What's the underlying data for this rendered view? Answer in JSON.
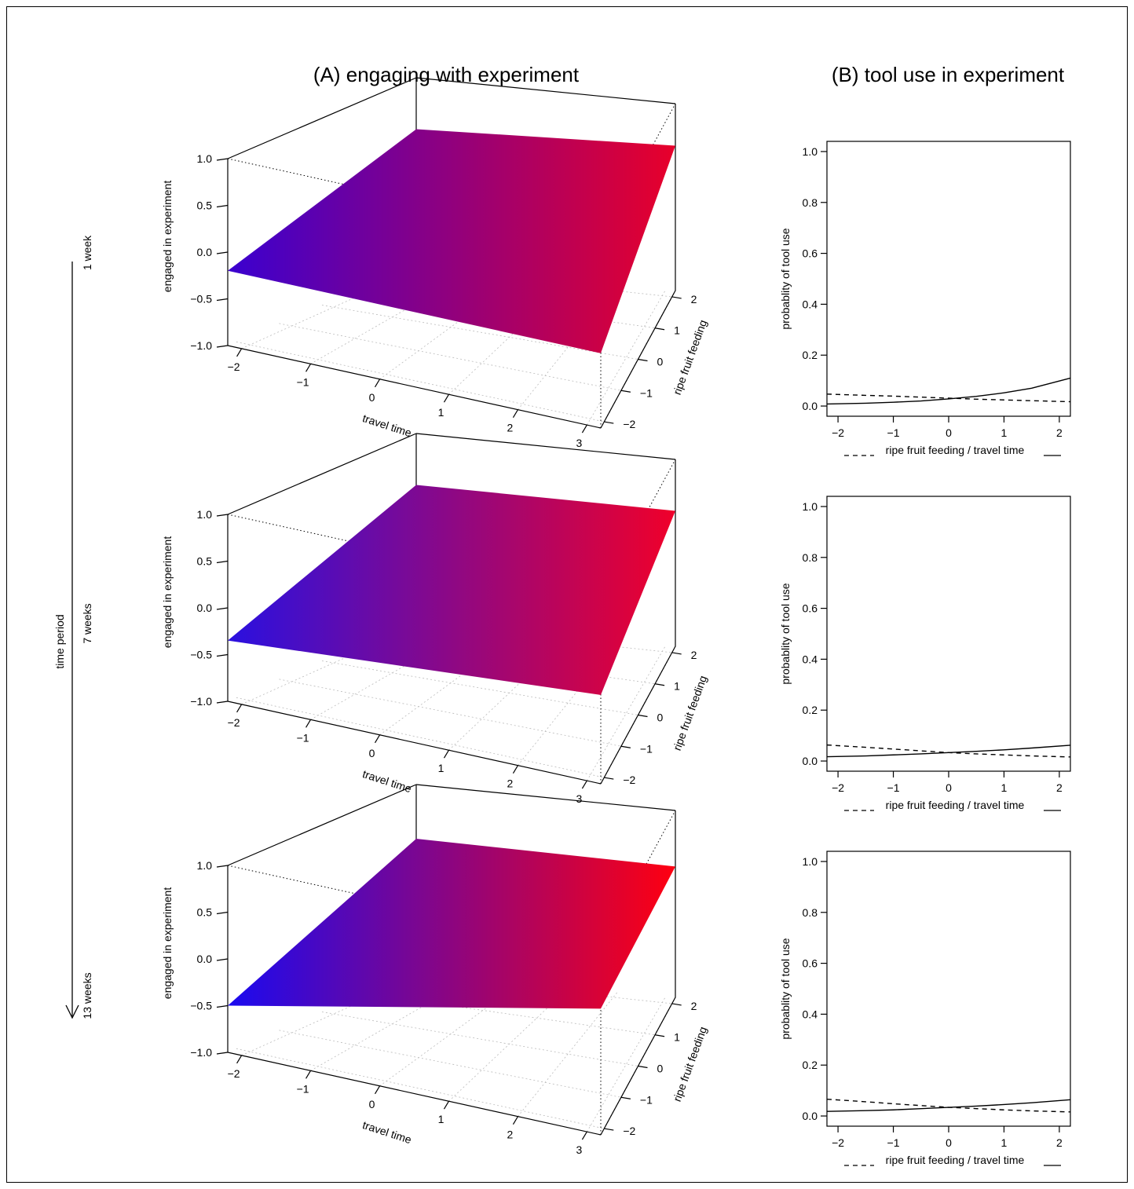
{
  "figure": {
    "left_title": "(A) engaging with experiment",
    "right_title": "(B) tool use in experiment",
    "time_axis_label": "time period",
    "periods": [
      "1 week",
      "7 weeks",
      "13 weeks"
    ]
  },
  "chart_data": [
    {
      "type": "surface",
      "panel": "A",
      "period": "1 week",
      "xlabel": "travel time",
      "ylabel": "ripe fruit feeding",
      "zlabel": "engaged in experiment",
      "xlim": [
        -2.2,
        3.2
      ],
      "ylim": [
        -2.2,
        2.2
      ],
      "zlim": [
        -1.0,
        1.0
      ],
      "xticks": [
        "−2",
        "−1",
        "0",
        "1",
        "2",
        "3"
      ],
      "yticks": [
        "−2",
        "−1",
        "0",
        "1",
        "2"
      ],
      "zticks": [
        "−1.0",
        "−0.5",
        "0.0",
        "0.5",
        "1.0"
      ],
      "corners": [
        {
          "travel_time": -2.2,
          "ripe_fruit_feeding": -2.2,
          "z": -0.2
        },
        {
          "travel_time": 3.2,
          "ripe_fruit_feeding": -2.2,
          "z": -0.2
        },
        {
          "travel_time": 3.2,
          "ripe_fruit_feeding": 2.2,
          "z": 0.55
        },
        {
          "travel_time": -2.2,
          "ripe_fruit_feeding": 2.2,
          "z": 0.45
        }
      ],
      "colors": [
        "#3a00d0",
        "#e8002a"
      ]
    },
    {
      "type": "surface",
      "panel": "A",
      "period": "7 weeks",
      "xlabel": "travel time",
      "ylabel": "ripe fruit feeding",
      "zlabel": "engaged in experiment",
      "xlim": [
        -2.2,
        3.2
      ],
      "ylim": [
        -2.2,
        2.2
      ],
      "zlim": [
        -1.0,
        1.0
      ],
      "xticks": [
        "−2",
        "−1",
        "0",
        "1",
        "2",
        "3"
      ],
      "yticks": [
        "−2",
        "−1",
        "0",
        "1",
        "2"
      ],
      "zticks": [
        "−1.0",
        "−0.5",
        "0.0",
        "0.5",
        "1.0"
      ],
      "corners": [
        {
          "travel_time": -2.2,
          "ripe_fruit_feeding": -2.2,
          "z": -0.35
        },
        {
          "travel_time": 3.2,
          "ripe_fruit_feeding": -2.2,
          "z": -0.05
        },
        {
          "travel_time": 3.2,
          "ripe_fruit_feeding": 2.2,
          "z": 0.45
        },
        {
          "travel_time": -2.2,
          "ripe_fruit_feeding": 2.2,
          "z": 0.45
        }
      ],
      "colors": [
        "#2a10e0",
        "#f0002a"
      ]
    },
    {
      "type": "surface",
      "panel": "A",
      "period": "13 weeks",
      "xlabel": "travel time",
      "ylabel": "ripe fruit feeding",
      "zlabel": "engaged in experiment",
      "xlim": [
        -2.2,
        3.2
      ],
      "ylim": [
        -2.2,
        2.2
      ],
      "zlim": [
        -1.0,
        1.0
      ],
      "xticks": [
        "−2",
        "−1",
        "0",
        "1",
        "2",
        "3"
      ],
      "yticks": [
        "−2",
        "−1",
        "0",
        "1",
        "2"
      ],
      "zticks": [
        "−1.0",
        "−0.5",
        "0.0",
        "0.5",
        "1.0"
      ],
      "corners": [
        {
          "travel_time": -2.2,
          "ripe_fruit_feeding": -2.2,
          "z": -0.5
        },
        {
          "travel_time": 3.2,
          "ripe_fruit_feeding": -2.2,
          "z": 0.35
        },
        {
          "travel_time": 3.2,
          "ripe_fruit_feeding": 2.2,
          "z": 0.4
        },
        {
          "travel_time": -2.2,
          "ripe_fruit_feeding": 2.2,
          "z": 0.42
        }
      ],
      "colors": [
        "#1a0af0",
        "#ff0010"
      ]
    },
    {
      "type": "line",
      "panel": "B",
      "period": "1 week",
      "xlabel": "ripe fruit feeding / travel time",
      "ylabel": "probablity of tool use",
      "xlim": [
        -2.2,
        2.2
      ],
      "ylim": [
        -0.04,
        1.04
      ],
      "xticks": [
        "−2",
        "−1",
        "0",
        "1",
        "2"
      ],
      "yticks": [
        "0.0",
        "0.2",
        "0.4",
        "0.6",
        "0.8",
        "1.0"
      ],
      "series": [
        {
          "style": "dashed",
          "x": [
            -2.2,
            -1.5,
            -1,
            -0.5,
            0,
            0.5,
            1,
            1.5,
            2.2
          ],
          "y": [
            0.047,
            0.042,
            0.039,
            0.035,
            0.031,
            0.027,
            0.024,
            0.021,
            0.017
          ]
        },
        {
          "style": "solid",
          "x": [
            -2.2,
            -1.5,
            -1,
            -0.5,
            0,
            0.5,
            1,
            1.5,
            2.2
          ],
          "y": [
            0.008,
            0.011,
            0.015,
            0.02,
            0.028,
            0.038,
            0.052,
            0.07,
            0.11
          ]
        }
      ]
    },
    {
      "type": "line",
      "panel": "B",
      "period": "7 weeks",
      "xlabel": "ripe fruit feeding / travel time",
      "ylabel": "probablity of tool use",
      "xlim": [
        -2.2,
        2.2
      ],
      "ylim": [
        -0.04,
        1.04
      ],
      "xticks": [
        "−2",
        "−1",
        "0",
        "1",
        "2"
      ],
      "yticks": [
        "0.0",
        "0.2",
        "0.4",
        "0.6",
        "0.8",
        "1.0"
      ],
      "series": [
        {
          "style": "dashed",
          "x": [
            -2.2,
            -1.5,
            -1,
            -0.5,
            0,
            0.5,
            1,
            1.5,
            2.2
          ],
          "y": [
            0.063,
            0.054,
            0.047,
            0.04,
            0.033,
            0.028,
            0.024,
            0.02,
            0.016
          ]
        },
        {
          "style": "solid",
          "x": [
            -2.2,
            -1.5,
            -1,
            -0.5,
            0,
            0.5,
            1,
            1.5,
            2.2
          ],
          "y": [
            0.017,
            0.02,
            0.024,
            0.028,
            0.033,
            0.038,
            0.044,
            0.051,
            0.062
          ]
        }
      ]
    },
    {
      "type": "line",
      "panel": "B",
      "period": "13 weeks",
      "xlabel": "ripe fruit feeding / travel time",
      "ylabel": "probablity of tool use",
      "xlim": [
        -2.2,
        2.2
      ],
      "ylim": [
        -0.04,
        1.04
      ],
      "xticks": [
        "−2",
        "−1",
        "0",
        "1",
        "2"
      ],
      "yticks": [
        "0.0",
        "0.2",
        "0.4",
        "0.6",
        "0.8",
        "1.0"
      ],
      "series": [
        {
          "style": "dashed",
          "x": [
            -2.2,
            -1.5,
            -1,
            -0.5,
            0,
            0.5,
            1,
            1.5,
            2.2
          ],
          "y": [
            0.066,
            0.056,
            0.048,
            0.041,
            0.034,
            0.029,
            0.024,
            0.02,
            0.016
          ]
        },
        {
          "style": "solid",
          "x": [
            -2.2,
            -1.5,
            -1,
            -0.5,
            0,
            0.5,
            1,
            1.5,
            2.2
          ],
          "y": [
            0.018,
            0.021,
            0.024,
            0.029,
            0.034,
            0.039,
            0.045,
            0.052,
            0.064
          ]
        }
      ]
    }
  ]
}
